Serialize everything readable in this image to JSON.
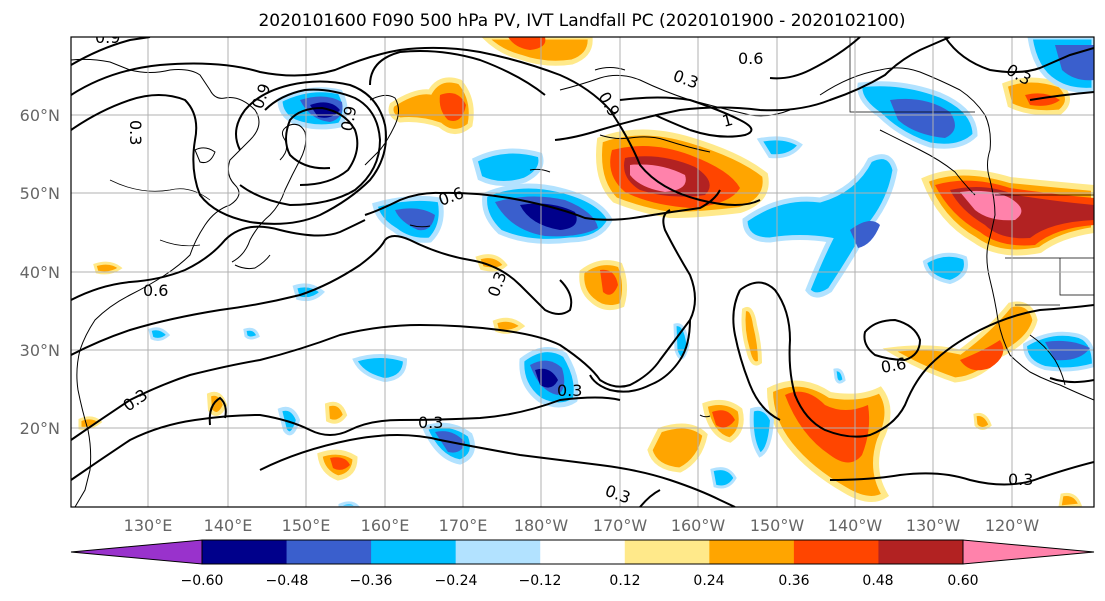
{
  "title": "2020101600 F090 500 hPa PV, IVT Landfall PC (2020101900 - 2020102100)",
  "lat_labels": [
    "60°N",
    "50°N",
    "40°N",
    "30°N",
    "20°N"
  ],
  "lon_labels": [
    "130°E",
    "140°E",
    "150°E",
    "160°E",
    "170°E",
    "180°W",
    "170°W",
    "160°W",
    "150°W",
    "140°W",
    "130°W",
    "120°W"
  ],
  "colorbar": {
    "ticks": [
      "−0.60",
      "−0.48",
      "−0.36",
      "−0.24",
      "−0.12",
      "0.12",
      "0.24",
      "0.36",
      "0.48",
      "0.60"
    ],
    "colors": [
      "#9932cc",
      "#00008b",
      "#3a5fcd",
      "#00bfff",
      "#b2e2ff",
      "#ffffff",
      "#ffe98a",
      "#ffa500",
      "#ff4500",
      "#b22222",
      "#ff82ab"
    ]
  },
  "contour_labels": [
    "0.9",
    "0.6",
    "0.3",
    "0.9",
    "1",
    "0.9",
    "0.6",
    "0.3",
    "0.9",
    "0.6",
    "0.3",
    "0.3",
    "0.3",
    "0.3",
    "0.6",
    "0.3",
    "0.3",
    "0.3"
  ]
}
